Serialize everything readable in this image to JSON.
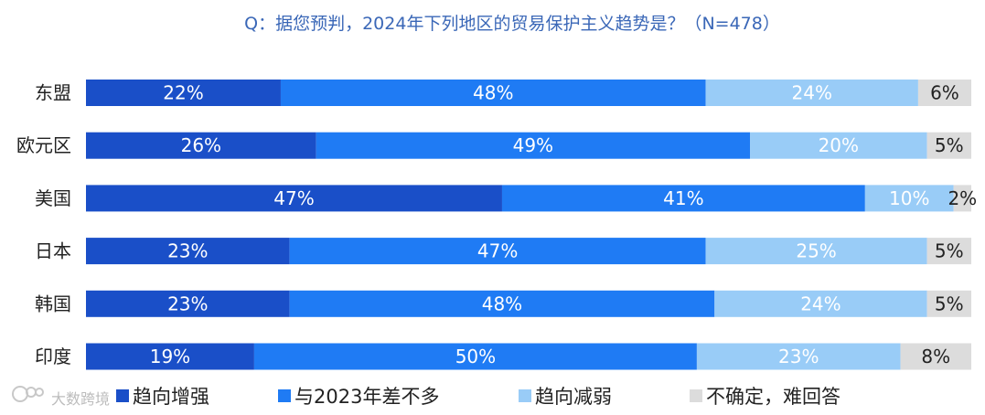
{
  "title": "Q：据您预判，2024年下列地区的贸易保护主义趋势是？（N=478）",
  "watermark": "大数跨境",
  "colors": {
    "increase": "#1a4fc8",
    "same": "#1f7bf4",
    "decrease": "#99ccf7",
    "uncertain": "#dcdcdc",
    "title": "#3a67b7"
  },
  "chart_data": {
    "type": "bar",
    "orientation": "horizontal",
    "stacked": true,
    "unit": "%",
    "categories": [
      "东盟",
      "欧元区",
      "美国",
      "日本",
      "韩国",
      "印度"
    ],
    "series": [
      {
        "name": "趋向增强",
        "values": [
          22,
          26,
          47,
          23,
          23,
          19
        ]
      },
      {
        "name": "与2023年差不多",
        "values": [
          48,
          49,
          41,
          47,
          48,
          50
        ]
      },
      {
        "name": "趋向减弱",
        "values": [
          24,
          20,
          10,
          25,
          24,
          23
        ]
      },
      {
        "name": "不确定，难回答",
        "values": [
          6,
          5,
          2,
          5,
          5,
          8
        ]
      }
    ],
    "xlim": [
      0,
      100
    ],
    "grid": false,
    "legend_position": "bottom"
  }
}
